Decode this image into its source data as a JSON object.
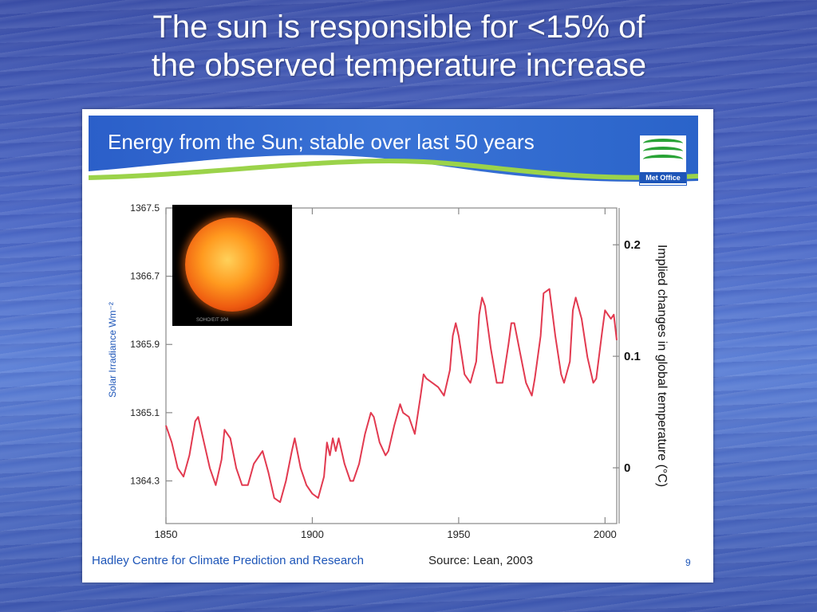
{
  "slide": {
    "title_line1": "The sun is responsible for <15% of",
    "title_line2": "the observed temperature increase"
  },
  "panel": {
    "banner_title": "Energy from the Sun; stable over last 50 years",
    "logo_text": "Met Office",
    "footer_left": "Hadley Centre for Climate Prediction and Research",
    "footer_source": "Source: Lean, 2003",
    "page_number": "9",
    "photo_credit": "SOHO/EIT 304"
  },
  "colors": {
    "line": "#e23a50",
    "axis": "#888888",
    "brand_blue": "#1d55b8",
    "logo_green": "#29a336"
  },
  "chart_data": {
    "type": "line",
    "title": "",
    "xlabel": "",
    "ylabel": "Solar Irradiance Wm⁻²",
    "y2label": "Implied changes in global temperature  (°C)",
    "xlim": [
      1850,
      2004
    ],
    "ylim": [
      1363.8,
      1367.5
    ],
    "y2lim": [
      -0.05,
      0.233
    ],
    "x_ticks": [
      1850,
      1900,
      1950,
      2000
    ],
    "y_ticks": [
      "1367.5",
      "1366.7",
      "1365.9",
      "1365.1",
      "1364.3"
    ],
    "y2_ticks": [
      "0.2",
      "0.1",
      "0"
    ],
    "y2_tick_values": [
      0.2,
      0.1,
      0.0
    ],
    "grid": false,
    "series": [
      {
        "values": [
          [
            1850,
            1364.95
          ],
          [
            1852,
            1364.75
          ],
          [
            1854,
            1364.45
          ],
          [
            1856,
            1364.35
          ],
          [
            1858,
            1364.6
          ],
          [
            1860,
            1365.0
          ],
          [
            1861,
            1365.05
          ],
          [
            1863,
            1364.75
          ],
          [
            1865,
            1364.45
          ],
          [
            1867,
            1364.25
          ],
          [
            1869,
            1364.55
          ],
          [
            1870,
            1364.9
          ],
          [
            1872,
            1364.8
          ],
          [
            1874,
            1364.45
          ],
          [
            1876,
            1364.25
          ],
          [
            1878,
            1364.25
          ],
          [
            1880,
            1364.5
          ],
          [
            1883,
            1364.65
          ],
          [
            1885,
            1364.4
          ],
          [
            1887,
            1364.1
          ],
          [
            1889,
            1364.05
          ],
          [
            1891,
            1364.3
          ],
          [
            1893,
            1364.65
          ],
          [
            1894,
            1364.8
          ],
          [
            1896,
            1364.45
          ],
          [
            1898,
            1364.25
          ],
          [
            1900,
            1364.15
          ],
          [
            1902,
            1364.1
          ],
          [
            1904,
            1364.35
          ],
          [
            1905,
            1364.75
          ],
          [
            1906,
            1364.6
          ],
          [
            1907,
            1364.8
          ],
          [
            1908,
            1364.65
          ],
          [
            1909,
            1364.8
          ],
          [
            1911,
            1364.5
          ],
          [
            1913,
            1364.3
          ],
          [
            1914,
            1364.3
          ],
          [
            1916,
            1364.5
          ],
          [
            1918,
            1364.85
          ],
          [
            1920,
            1365.1
          ],
          [
            1921,
            1365.05
          ],
          [
            1923,
            1364.75
          ],
          [
            1925,
            1364.6
          ],
          [
            1926,
            1364.65
          ],
          [
            1928,
            1364.95
          ],
          [
            1930,
            1365.2
          ],
          [
            1931,
            1365.1
          ],
          [
            1933,
            1365.05
          ],
          [
            1935,
            1364.85
          ],
          [
            1937,
            1365.3
          ],
          [
            1938,
            1365.55
          ],
          [
            1939,
            1365.5
          ],
          [
            1941,
            1365.45
          ],
          [
            1943,
            1365.4
          ],
          [
            1945,
            1365.3
          ],
          [
            1947,
            1365.6
          ],
          [
            1948,
            1366.0
          ],
          [
            1949,
            1366.15
          ],
          [
            1950,
            1366.0
          ],
          [
            1952,
            1365.55
          ],
          [
            1954,
            1365.45
          ],
          [
            1956,
            1365.7
          ],
          [
            1957,
            1366.25
          ],
          [
            1958,
            1366.45
          ],
          [
            1959,
            1366.35
          ],
          [
            1961,
            1365.85
          ],
          [
            1963,
            1365.45
          ],
          [
            1965,
            1365.45
          ],
          [
            1967,
            1365.9
          ],
          [
            1968,
            1366.15
          ],
          [
            1969,
            1366.15
          ],
          [
            1971,
            1365.8
          ],
          [
            1973,
            1365.45
          ],
          [
            1975,
            1365.3
          ],
          [
            1976,
            1365.5
          ],
          [
            1978,
            1366.0
          ],
          [
            1979,
            1366.5
          ],
          [
            1981,
            1366.55
          ],
          [
            1983,
            1366.0
          ],
          [
            1985,
            1365.55
          ],
          [
            1986,
            1365.45
          ],
          [
            1988,
            1365.7
          ],
          [
            1989,
            1366.3
          ],
          [
            1990,
            1366.45
          ],
          [
            1992,
            1366.2
          ],
          [
            1994,
            1365.75
          ],
          [
            1996,
            1365.45
          ],
          [
            1997,
            1365.5
          ],
          [
            1999,
            1366.05
          ],
          [
            2000,
            1366.3
          ],
          [
            2001,
            1366.25
          ],
          [
            2002,
            1366.2
          ],
          [
            2003,
            1366.25
          ],
          [
            2004,
            1365.95
          ]
        ]
      }
    ]
  }
}
